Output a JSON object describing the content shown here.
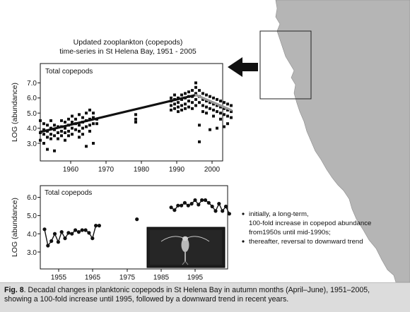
{
  "header": {
    "line1": "Updated zooplankton (copepods)",
    "line2": "time-series in St Helena Bay, 1951 - 2005"
  },
  "top_chart": {
    "panel_label": "Total copepods",
    "ylabel": "LOG (abundance)",
    "y_ticks": [
      "3.0",
      "4.0",
      "5.0",
      "6.0",
      "7.0"
    ],
    "x_ticks": [
      "1960",
      "1970",
      "1980",
      "1990",
      "2000"
    ]
  },
  "bottom_chart": {
    "panel_label": "Total copepods",
    "ylabel": "LOG (abundance)",
    "y_ticks": [
      "3.0",
      "4.0",
      "5.0",
      "6.0"
    ],
    "x_ticks": [
      "1955",
      "1965",
      "1975",
      "1985",
      "1995"
    ]
  },
  "bullets": {
    "b1_line1": "initially, a long-term,",
    "b1_line2": "100-fold increase in copepod abundance",
    "b1_line3": "from1950s until mid-1990s;",
    "b2_line1": "thereafter, reversal to downward trend"
  },
  "caption": {
    "fig_label": "Fig. 8",
    "text_line1": ". Decadal changes in planktonic copepods in St Helena Bay in autumn months (April–June), 1951–2005,",
    "text_line2": "showing a 100-fold increase until 1995, followed by a downward trend in recent years."
  },
  "colors": {
    "land": "#b5b5b5",
    "ink": "#111111",
    "caption_bg": "#dcdcdc"
  },
  "chart_data": [
    {
      "type": "scatter",
      "title": "Total copepods",
      "xlabel": "",
      "ylabel": "LOG (abundance)",
      "xlim": [
        1951,
        2005
      ],
      "ylim": [
        2.4,
        7.4
      ],
      "grid": false,
      "points": [
        [
          1951,
          3.7
        ],
        [
          1951,
          3.2
        ],
        [
          1951,
          4.5
        ],
        [
          1952,
          3.9
        ],
        [
          1952,
          3.6
        ],
        [
          1952,
          3.0
        ],
        [
          1952,
          4.3
        ],
        [
          1953,
          3.8
        ],
        [
          1953,
          3.4
        ],
        [
          1953,
          4.2
        ],
        [
          1953,
          2.6
        ],
        [
          1954,
          4.0
        ],
        [
          1954,
          3.6
        ],
        [
          1954,
          3.3
        ],
        [
          1954,
          4.5
        ],
        [
          1955,
          3.9
        ],
        [
          1955,
          3.5
        ],
        [
          1955,
          4.2
        ],
        [
          1955,
          2.5
        ],
        [
          1956,
          4.1
        ],
        [
          1956,
          3.7
        ],
        [
          1956,
          3.3
        ],
        [
          1957,
          3.8
        ],
        [
          1957,
          4.1
        ],
        [
          1957,
          3.5
        ],
        [
          1957,
          4.5
        ],
        [
          1958,
          4.0
        ],
        [
          1958,
          3.7
        ],
        [
          1958,
          4.4
        ],
        [
          1958,
          3.2
        ],
        [
          1959,
          4.2
        ],
        [
          1959,
          3.8
        ],
        [
          1959,
          4.6
        ],
        [
          1959,
          3.5
        ],
        [
          1960,
          4.0
        ],
        [
          1960,
          3.6
        ],
        [
          1960,
          4.4
        ],
        [
          1960,
          4.8
        ],
        [
          1961,
          4.3
        ],
        [
          1961,
          3.9
        ],
        [
          1961,
          4.6
        ],
        [
          1962,
          4.2
        ],
        [
          1962,
          3.8
        ],
        [
          1962,
          4.9
        ],
        [
          1962,
          3.4
        ],
        [
          1963,
          4.4
        ],
        [
          1963,
          4.0
        ],
        [
          1963,
          4.7
        ],
        [
          1963,
          3.6
        ],
        [
          1964,
          4.5
        ],
        [
          1964,
          4.1
        ],
        [
          1964,
          5.0
        ],
        [
          1964,
          2.8
        ],
        [
          1965,
          4.6
        ],
        [
          1965,
          4.2
        ],
        [
          1965,
          5.2
        ],
        [
          1965,
          3.8
        ],
        [
          1966,
          4.7
        ],
        [
          1966,
          4.3
        ],
        [
          1966,
          5.0
        ],
        [
          1966,
          3.0
        ],
        [
          1967,
          4.6
        ],
        [
          1967,
          4.3
        ],
        [
          1978,
          4.6
        ],
        [
          1978,
          4.9
        ],
        [
          1978,
          4.4
        ],
        [
          1988,
          5.5
        ],
        [
          1988,
          5.8
        ],
        [
          1988,
          5.2
        ],
        [
          1988,
          6.0
        ],
        [
          1989,
          5.6
        ],
        [
          1989,
          5.3
        ],
        [
          1989,
          5.9
        ],
        [
          1989,
          6.2
        ],
        [
          1990,
          5.7
        ],
        [
          1990,
          5.4
        ],
        [
          1990,
          6.0
        ],
        [
          1990,
          5.1
        ],
        [
          1991,
          5.9
        ],
        [
          1991,
          5.5
        ],
        [
          1991,
          6.2
        ],
        [
          1991,
          5.2
        ],
        [
          1992,
          6.0
        ],
        [
          1992,
          5.6
        ],
        [
          1992,
          6.3
        ],
        [
          1992,
          5.3
        ],
        [
          1993,
          5.8
        ],
        [
          1993,
          6.1
        ],
        [
          1993,
          5.4
        ],
        [
          1993,
          6.4
        ],
        [
          1994,
          6.1
        ],
        [
          1994,
          5.7
        ],
        [
          1994,
          6.5
        ],
        [
          1994,
          5.3
        ],
        [
          1995,
          6.3
        ],
        [
          1995,
          5.9
        ],
        [
          1995,
          6.7
        ],
        [
          1995,
          5.5
        ],
        [
          1995,
          7.0
        ],
        [
          1996,
          6.1
        ],
        [
          1996,
          5.7
        ],
        [
          1996,
          6.5
        ],
        [
          1996,
          4.2
        ],
        [
          1996,
          3.1
        ],
        [
          1997,
          5.9
        ],
        [
          1997,
          5.5
        ],
        [
          1997,
          6.3
        ],
        [
          1997,
          5.1
        ],
        [
          1998,
          5.8
        ],
        [
          1998,
          5.4
        ],
        [
          1998,
          6.2
        ],
        [
          1998,
          5.0
        ],
        [
          1999,
          5.7
        ],
        [
          1999,
          5.3
        ],
        [
          1999,
          6.1
        ],
        [
          1999,
          3.9
        ],
        [
          2000,
          5.6
        ],
        [
          2000,
          5.2
        ],
        [
          2000,
          6.0
        ],
        [
          2000,
          4.8
        ],
        [
          2001,
          5.5
        ],
        [
          2001,
          5.1
        ],
        [
          2001,
          5.9
        ],
        [
          2001,
          4.0
        ],
        [
          2002,
          5.4
        ],
        [
          2002,
          5.0
        ],
        [
          2002,
          5.8
        ],
        [
          2002,
          4.6
        ],
        [
          2003,
          5.3
        ],
        [
          2003,
          5.7
        ],
        [
          2003,
          4.9
        ],
        [
          2003,
          4.1
        ],
        [
          2004,
          5.2
        ],
        [
          2004,
          5.6
        ],
        [
          2004,
          4.8
        ],
        [
          2004,
          4.3
        ],
        [
          2005,
          5.1
        ],
        [
          2005,
          5.5
        ],
        [
          2005,
          4.7
        ]
      ],
      "trend_rising": [
        [
          1951,
          3.75
        ],
        [
          1995,
          6.2
        ]
      ],
      "trend_declining": [
        [
          1995,
          6.2
        ],
        [
          2005,
          5.2
        ]
      ]
    },
    {
      "type": "line",
      "title": "Total copepods",
      "xlabel": "",
      "ylabel": "LOG (abundance)",
      "xlim": [
        1951,
        2005
      ],
      "ylim": [
        2.9,
        6.4
      ],
      "grid": false,
      "series": [
        {
          "x": [
            1951,
            1952,
            1953,
            1954,
            1955,
            1956,
            1957,
            1958,
            1959,
            1960,
            1961,
            1962,
            1963,
            1964,
            1965,
            1966,
            1967
          ],
          "y": [
            4.25,
            3.35,
            3.6,
            4.0,
            3.55,
            4.1,
            3.75,
            4.05,
            4.0,
            4.2,
            4.1,
            4.2,
            4.2,
            4.05,
            3.75,
            4.45,
            4.45
          ]
        },
        {
          "x": [
            1978
          ],
          "y": [
            4.8
          ]
        },
        {
          "x": [
            1988,
            1989,
            1990,
            1991,
            1992,
            1993,
            1994,
            1995,
            1996,
            1997,
            1998,
            1999,
            2000,
            2001,
            2002,
            2003,
            2004,
            2005
          ],
          "y": [
            5.45,
            5.3,
            5.55,
            5.55,
            5.7,
            5.55,
            5.65,
            5.85,
            5.6,
            5.85,
            5.85,
            5.7,
            5.5,
            5.25,
            5.65,
            5.25,
            5.5,
            5.1
          ]
        }
      ]
    }
  ]
}
